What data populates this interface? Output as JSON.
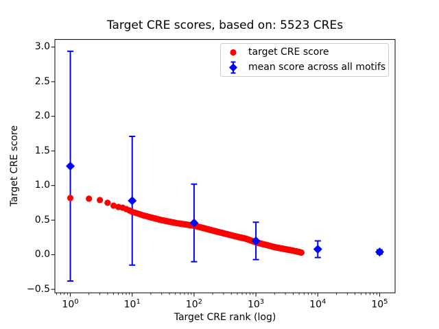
{
  "chart_data": {
    "type": "scatter",
    "title": "Target CRE scores, based on: 5523 CREs",
    "xlabel": "Target CRE rank (log)",
    "ylabel": "Target CRE score",
    "x_scale": "log",
    "grid": false,
    "legend_position": "upper right",
    "xlim_log10": [
      -0.25,
      5.25
    ],
    "ylim": [
      -0.55,
      3.11
    ],
    "x_tick_exponents": [
      0,
      1,
      2,
      3,
      4,
      5
    ],
    "x_minor_ticks": true,
    "y_ticks": [
      {
        "v": -0.5,
        "label": "−0.5"
      },
      {
        "v": 0.0,
        "label": "0.0"
      },
      {
        "v": 0.5,
        "label": "0.5"
      },
      {
        "v": 1.0,
        "label": "1.0"
      },
      {
        "v": 1.5,
        "label": "1.5"
      },
      {
        "v": 2.0,
        "label": "2.0"
      },
      {
        "v": 2.5,
        "label": "2.5"
      },
      {
        "v": 3.0,
        "label": "3.0"
      }
    ],
    "series": [
      {
        "name": "target CRE score",
        "kind": "scatter",
        "marker": "circle",
        "color": "#ff0000",
        "n_points": 5523,
        "anchors": [
          [
            1,
            0.82
          ],
          [
            2,
            0.81
          ],
          [
            3,
            0.79
          ],
          [
            4,
            0.75
          ],
          [
            5,
            0.71
          ],
          [
            6,
            0.69
          ],
          [
            7,
            0.68
          ],
          [
            8,
            0.66
          ],
          [
            9,
            0.64
          ],
          [
            10,
            0.62
          ],
          [
            15,
            0.57
          ],
          [
            20,
            0.54
          ],
          [
            30,
            0.5
          ],
          [
            50,
            0.46
          ],
          [
            70,
            0.44
          ],
          [
            100,
            0.42
          ],
          [
            150,
            0.38
          ],
          [
            200,
            0.35
          ],
          [
            300,
            0.31
          ],
          [
            500,
            0.26
          ],
          [
            700,
            0.23
          ],
          [
            1000,
            0.18
          ],
          [
            1500,
            0.14
          ],
          [
            2000,
            0.11
          ],
          [
            3000,
            0.08
          ],
          [
            4000,
            0.06
          ],
          [
            5523,
            0.03
          ]
        ]
      },
      {
        "name": "mean score across all motifs",
        "kind": "errorbar",
        "marker": "diamond",
        "color": "#0000ff",
        "points": [
          {
            "x": 1,
            "y": 1.28,
            "err": 1.66
          },
          {
            "x": 10,
            "y": 0.78,
            "err": 0.93
          },
          {
            "x": 100,
            "y": 0.46,
            "err": 0.56
          },
          {
            "x": 1000,
            "y": 0.2,
            "err": 0.27
          },
          {
            "x": 10000,
            "y": 0.08,
            "err": 0.12
          },
          {
            "x": 100000,
            "y": 0.04,
            "err": 0.03
          }
        ]
      }
    ]
  },
  "legend": {
    "items": [
      {
        "label": "target CRE score"
      },
      {
        "label": "mean score across all motifs"
      }
    ]
  },
  "colors": {
    "scatter": "#ff0000",
    "errorbar": "#0000ff",
    "axes": "#000000",
    "legend_border": "#cccccc",
    "background": "#ffffff"
  }
}
